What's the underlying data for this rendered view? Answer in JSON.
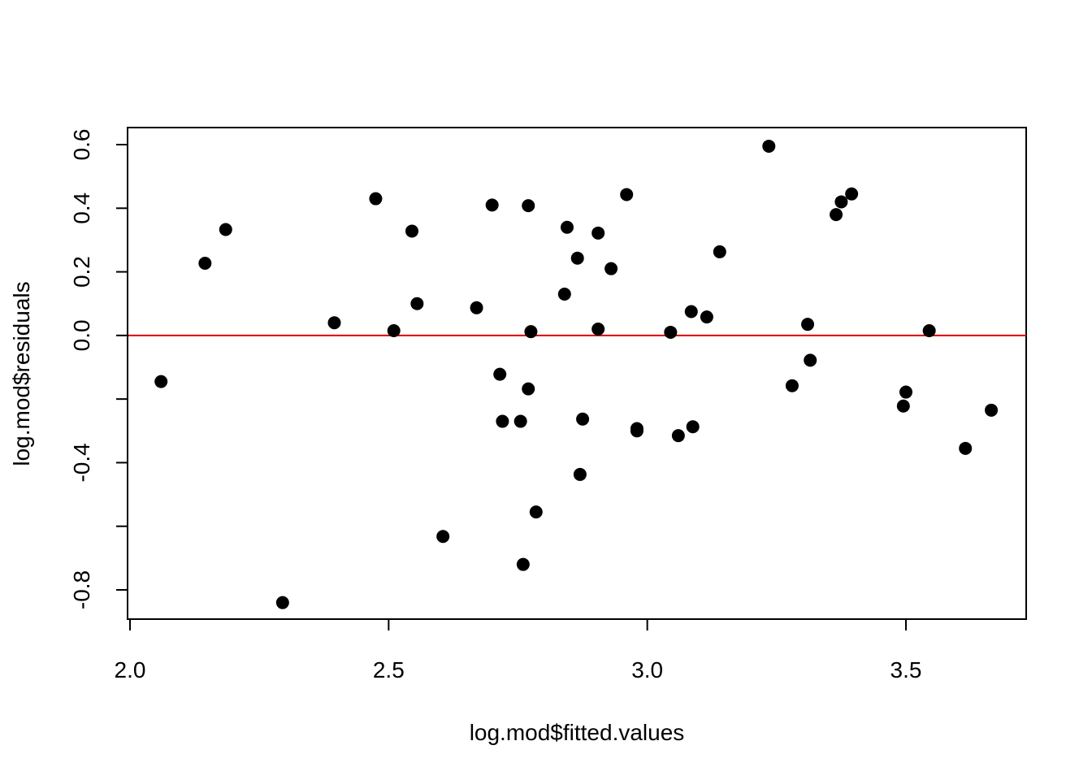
{
  "chart_data": {
    "type": "scatter",
    "title": "",
    "xlabel": "log.mod$fitted.values",
    "ylabel": "log.mod$residuals",
    "xlim": [
      2.0,
      3.7
    ],
    "ylim": [
      -0.85,
      0.65
    ],
    "x_ticks": [
      {
        "value": 2.0,
        "label": "2.0"
      },
      {
        "value": 2.5,
        "label": "2.5"
      },
      {
        "value": 3.0,
        "label": "3.0"
      },
      {
        "value": 3.5,
        "label": "3.5"
      }
    ],
    "y_ticks": [
      {
        "value": 0.6,
        "label": "0.6"
      },
      {
        "value": 0.4,
        "label": "0.4"
      },
      {
        "value": 0.2,
        "label": "0.2"
      },
      {
        "value": 0.0,
        "label": "0.0"
      },
      {
        "value": -0.2,
        "label": ""
      },
      {
        "value": -0.4,
        "label": "-0.4"
      },
      {
        "value": -0.6,
        "label": ""
      },
      {
        "value": -0.8,
        "label": "-0.8"
      }
    ],
    "reference_line": {
      "y": 0.0,
      "color": "#dd0000"
    },
    "grid": false,
    "point_color": "#000000",
    "points": [
      {
        "x": 2.06,
        "y": -0.145
      },
      {
        "x": 2.145,
        "y": 0.227
      },
      {
        "x": 2.185,
        "y": 0.333
      },
      {
        "x": 2.295,
        "y": -0.84
      },
      {
        "x": 2.395,
        "y": 0.04
      },
      {
        "x": 2.475,
        "y": 0.43
      },
      {
        "x": 2.51,
        "y": 0.015
      },
      {
        "x": 2.545,
        "y": 0.328
      },
      {
        "x": 2.555,
        "y": 0.1
      },
      {
        "x": 2.605,
        "y": -0.632
      },
      {
        "x": 2.67,
        "y": 0.087
      },
      {
        "x": 2.7,
        "y": 0.41
      },
      {
        "x": 2.715,
        "y": -0.122
      },
      {
        "x": 2.72,
        "y": -0.27
      },
      {
        "x": 2.755,
        "y": -0.27
      },
      {
        "x": 2.76,
        "y": -0.72
      },
      {
        "x": 2.77,
        "y": 0.408
      },
      {
        "x": 2.77,
        "y": -0.168
      },
      {
        "x": 2.775,
        "y": 0.012
      },
      {
        "x": 2.785,
        "y": -0.555
      },
      {
        "x": 2.84,
        "y": 0.13
      },
      {
        "x": 2.845,
        "y": 0.34
      },
      {
        "x": 2.865,
        "y": 0.243
      },
      {
        "x": 2.87,
        "y": -0.437
      },
      {
        "x": 2.875,
        "y": -0.263
      },
      {
        "x": 2.905,
        "y": 0.322
      },
      {
        "x": 2.905,
        "y": 0.02
      },
      {
        "x": 2.93,
        "y": 0.21
      },
      {
        "x": 2.96,
        "y": 0.443
      },
      {
        "x": 2.98,
        "y": -0.293
      },
      {
        "x": 2.98,
        "y": -0.3
      },
      {
        "x": 3.045,
        "y": 0.01
      },
      {
        "x": 3.06,
        "y": -0.315
      },
      {
        "x": 3.085,
        "y": 0.075
      },
      {
        "x": 3.088,
        "y": -0.287
      },
      {
        "x": 3.115,
        "y": 0.058
      },
      {
        "x": 3.14,
        "y": 0.263
      },
      {
        "x": 3.235,
        "y": 0.595
      },
      {
        "x": 3.28,
        "y": -0.158
      },
      {
        "x": 3.31,
        "y": 0.035
      },
      {
        "x": 3.315,
        "y": -0.078
      },
      {
        "x": 3.365,
        "y": 0.38
      },
      {
        "x": 3.375,
        "y": 0.42
      },
      {
        "x": 3.395,
        "y": 0.445
      },
      {
        "x": 3.495,
        "y": -0.222
      },
      {
        "x": 3.5,
        "y": -0.178
      },
      {
        "x": 3.545,
        "y": 0.015
      },
      {
        "x": 3.615,
        "y": -0.355
      },
      {
        "x": 3.665,
        "y": -0.235
      }
    ]
  }
}
